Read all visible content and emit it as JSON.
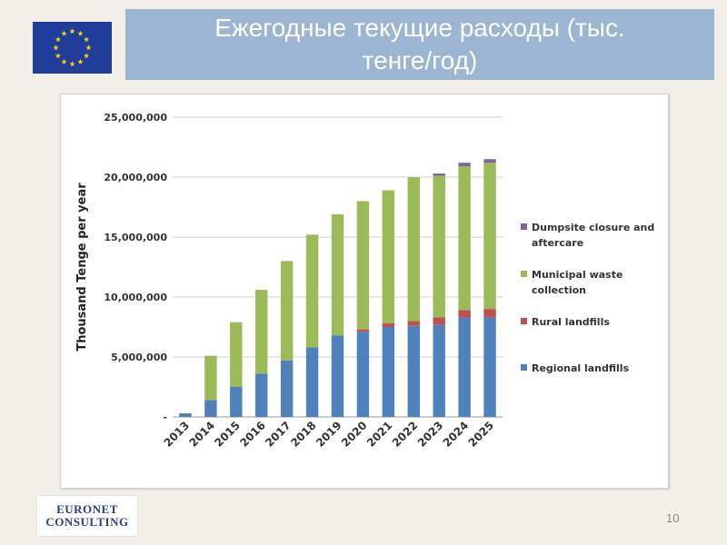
{
  "slide": {
    "title": "Ежегодные текущие расходы (тыс. тенге/год)",
    "page_number": "10",
    "logo": {
      "line1": "EURONET",
      "line2": "CONSULTING"
    }
  },
  "colors": {
    "regional": "#4f81bd",
    "rural": "#c0504d",
    "municipal": "#9bbb59",
    "dumpsite": "#8064a2",
    "flag_blue": "#1f3d99",
    "flag_star": "#ffd700"
  },
  "chart_data": {
    "type": "bar",
    "stacked": true,
    "ylabel": "Thousand Tenge per year",
    "ylim": [
      0,
      25000000
    ],
    "yticks": [
      0,
      5000000,
      10000000,
      15000000,
      20000000,
      25000000
    ],
    "ytick_labels": [
      "-",
      "5,000,000",
      "10,000,000",
      "15,000,000",
      "20,000,000",
      "25,000,000"
    ],
    "grid": true,
    "legend_position": "right",
    "categories": [
      "2013",
      "2014",
      "2015",
      "2016",
      "2017",
      "2018",
      "2019",
      "2020",
      "2021",
      "2022",
      "2023",
      "2024",
      "2025"
    ],
    "series": [
      {
        "name": "Regional landfills",
        "color_key": "regional",
        "values": [
          300000,
          1400000,
          2500000,
          3600000,
          4700000,
          5800000,
          6800000,
          7100000,
          7500000,
          7600000,
          7700000,
          8300000,
          8300000
        ]
      },
      {
        "name": "Rural landfills",
        "color_key": "rural",
        "values": [
          0,
          0,
          0,
          0,
          0,
          0,
          0,
          200000,
          300000,
          400000,
          600000,
          600000,
          700000
        ]
      },
      {
        "name": "Municipal waste collection",
        "color_key": "municipal",
        "values": [
          0,
          3700000,
          5400000,
          7000000,
          8300000,
          9400000,
          10100000,
          10700000,
          11100000,
          12000000,
          11800000,
          12000000,
          12200000
        ]
      },
      {
        "name": "Dumpsite closure and aftercare",
        "color_key": "dumpsite",
        "values": [
          0,
          0,
          0,
          0,
          0,
          0,
          0,
          0,
          0,
          0,
          200000,
          300000,
          300000
        ]
      }
    ],
    "legend_order": [
      "Dumpsite closure and aftercare",
      "Municipal waste collection",
      "Rural landfills",
      "Regional landfills"
    ]
  }
}
